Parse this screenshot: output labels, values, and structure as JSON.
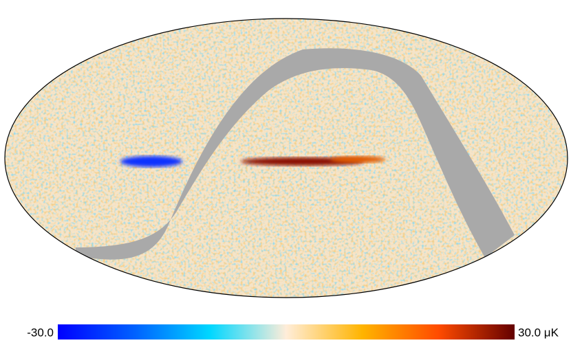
{
  "map": {
    "type": "mollweide",
    "colorbar": {
      "lim": [
        -30,
        30
      ],
      "ticks": [
        {
          "value": -30,
          "label": "-30.0"
        },
        {
          "value": 30,
          "label": "30.0 μK"
        }
      ],
      "colors": [
        "#0000ff",
        "#0060ff",
        "#00d7ff",
        "#ffedd9",
        "#ffb400",
        "#ff4b00",
        "#640000"
      ]
    }
  }
}
